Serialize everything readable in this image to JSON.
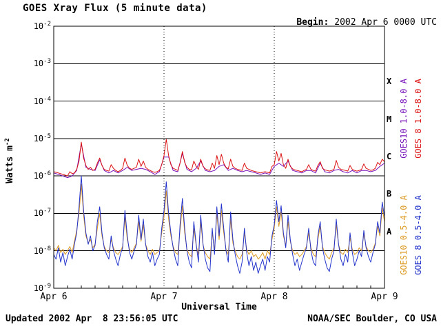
{
  "chart_data": {
    "type": "line",
    "title": "GOES Xray Flux (5 minute data)",
    "annotations": {
      "begin_label": "Begin:",
      "begin_value": "2002 Apr 6 0000 UTC",
      "updated": "Updated 2002 Apr  8 23:56:05 UTC",
      "credit": "NOAA/SEC Boulder, CO USA"
    },
    "xlabel": "Universal Time",
    "ylabel": "Watts m^-2",
    "y_scale": "log10",
    "y_range": [
      1e-09,
      0.01
    ],
    "y_ticks": [
      "10^-2",
      "10^-3",
      "10^-4",
      "10^-5",
      "10^-6",
      "10^-7",
      "10^-8",
      "10^-9"
    ],
    "x_range_hours": [
      0,
      72
    ],
    "x_ticks": [
      "Apr 6",
      "Apr 7",
      "Apr 8",
      "Apr 9"
    ],
    "flare_classes": [
      "X",
      "M",
      "C",
      "B",
      "A"
    ],
    "grid": {
      "horizontal": "solid black line at each decade",
      "vertical": "dotted black line at each day boundary"
    },
    "legend_position": "right edge, rotated labels colored per series",
    "series": [
      {
        "name": "GOES10 1.0-8.0 A",
        "color": "#7711bb",
        "dt_hours": 1.0,
        "values": [
          1.2e-06,
          1.1e-06,
          1e-06,
          9e-07,
          1e-06,
          1.4e-06,
          7.2e-06,
          1.7e-06,
          1.5e-06,
          1.4e-06,
          2.7e-06,
          1.4e-06,
          1.2e-06,
          1.4e-06,
          1.2e-06,
          1.4e-06,
          1.7e-06,
          1.4e-06,
          1.5e-06,
          1.6e-06,
          1.5e-06,
          1.3e-06,
          1.1e-06,
          1.3e-06,
          3.2e-06,
          3.2e-06,
          1.4e-06,
          1.3e-06,
          4e-06,
          1.5e-06,
          1.3e-06,
          1.6e-06,
          2.5e-06,
          1.4e-06,
          1.3e-06,
          1.4e-06,
          1.8e-06,
          2e-06,
          1.4e-06,
          1.6e-06,
          1.4e-06,
          1.3e-06,
          1.4e-06,
          1.3e-06,
          1.2e-06,
          1.1e-06,
          1.2e-06,
          1.1e-06,
          1.8e-06,
          2.2e-06,
          1.8e-06,
          2.5e-06,
          1.4e-06,
          1.3e-06,
          1.2e-06,
          1.4e-06,
          1.4e-06,
          1.2e-06,
          2.2e-06,
          1.3e-06,
          1.2e-06,
          1.4e-06,
          1.5e-06,
          1.3e-06,
          1.2e-06,
          1.4e-06,
          1.2e-06,
          1.4e-06,
          1.4e-06,
          1.3e-06,
          1.4e-06,
          1.8e-06,
          2.2e-06
        ]
      },
      {
        "name": "GOES 8 1.0-8.0 A",
        "color": "#dd1111",
        "dt_hours": 0.5,
        "values": [
          1.3e-06,
          1.25e-06,
          1.2e-06,
          1.15e-06,
          1.1e-06,
          1.05e-06,
          1e-06,
          1.3e-06,
          1.15e-06,
          1.2e-06,
          1.5e-06,
          2.5e-06,
          8e-06,
          3e-06,
          1.9e-06,
          1.5e-06,
          1.7e-06,
          1.4e-06,
          1.5e-06,
          2.2e-06,
          3e-06,
          1.9e-06,
          1.5e-06,
          1.4e-06,
          1.35e-06,
          2e-06,
          1.6e-06,
          1.4e-06,
          1.3e-06,
          1.4e-06,
          1.6e-06,
          3e-06,
          1.9e-06,
          1.6e-06,
          1.5e-06,
          1.6e-06,
          1.7e-06,
          2.8e-06,
          1.8e-06,
          2.5e-06,
          1.7e-06,
          1.5e-06,
          1.4e-06,
          1.3e-06,
          1.25e-06,
          1.3e-06,
          1.4e-06,
          2e-06,
          3.5e-06,
          9.5e-06,
          3.5e-06,
          2e-06,
          1.6e-06,
          1.5e-06,
          1.4e-06,
          2.2e-06,
          4.5e-06,
          2.3e-06,
          1.7e-06,
          1.5e-06,
          1.45e-06,
          2.5e-06,
          1.8e-06,
          1.5e-06,
          2.8e-06,
          1.8e-06,
          1.55e-06,
          1.45e-06,
          1.4e-06,
          2.2e-06,
          1.6e-06,
          3.5e-06,
          2e-06,
          3.8e-06,
          2.2e-06,
          1.7e-06,
          1.55e-06,
          2.8e-06,
          1.8e-06,
          1.6e-06,
          1.5e-06,
          1.45e-06,
          1.4e-06,
          2.2e-06,
          1.6e-06,
          1.5e-06,
          1.4e-06,
          1.35e-06,
          1.3e-06,
          1.25e-06,
          1.2e-06,
          1.25e-06,
          1.3e-06,
          1.25e-06,
          1.2e-06,
          1.8e-06,
          2e-06,
          4.5e-06,
          2.5e-06,
          4e-06,
          2e-06,
          1.6e-06,
          2.8e-06,
          1.8e-06,
          1.55e-06,
          1.45e-06,
          1.4e-06,
          1.35e-06,
          1.3e-06,
          1.4e-06,
          1.5e-06,
          2e-06,
          1.5e-06,
          1.4e-06,
          1.35e-06,
          1.9e-06,
          2.4e-06,
          1.6e-06,
          1.45e-06,
          1.4e-06,
          1.35e-06,
          1.4e-06,
          1.5e-06,
          2.6e-06,
          1.7e-06,
          1.5e-06,
          1.45e-06,
          1.4e-06,
          1.35e-06,
          1.9e-06,
          1.5e-06,
          1.4e-06,
          1.35e-06,
          1.4e-06,
          1.5e-06,
          2.1e-06,
          1.6e-06,
          1.5e-06,
          1.4e-06,
          1.45e-06,
          1.6e-06,
          2.3e-06,
          2e-06,
          2.8e-06,
          2.4e-06
        ]
      },
      {
        "name": "GOES10 0.5-4.0 A",
        "color": "#dd9922",
        "dt_hours": 0.5,
        "values": [
          1.2e-08,
          1e-08,
          1.4e-08,
          9e-09,
          1.1e-08,
          8e-09,
          1e-08,
          1.3e-08,
          9e-09,
          1.8e-08,
          3.5e-08,
          1e-07,
          6e-07,
          9e-08,
          2.5e-08,
          1.6e-08,
          2e-08,
          1.2e-08,
          1.5e-08,
          4e-08,
          1e-07,
          2.5e-08,
          1.3e-08,
          1e-08,
          9e-09,
          2e-08,
          1.2e-08,
          9e-09,
          8e-09,
          1e-08,
          1.3e-08,
          8e-08,
          2e-08,
          1.1e-08,
          9e-09,
          1.2e-08,
          1.6e-08,
          6e-08,
          1.8e-08,
          5e-08,
          1.5e-08,
          1e-08,
          8e-09,
          1.1e-08,
          8e-09,
          9e-09,
          1e-08,
          3e-08,
          8e-08,
          4e-07,
          7e-08,
          2.5e-08,
          1.3e-08,
          9e-09,
          8e-09,
          3.5e-08,
          1.6e-07,
          3e-08,
          1.1e-08,
          8e-09,
          7e-09,
          4e-08,
          1.4e-08,
          8e-09,
          6e-08,
          1.4e-08,
          9e-09,
          7e-09,
          6e-09,
          3e-08,
          1e-08,
          1e-07,
          2e-08,
          1.2e-07,
          3e-08,
          1.1e-08,
          8e-09,
          7e-08,
          1.6e-08,
          1e-08,
          7e-09,
          6e-09,
          8e-09,
          3e-08,
          1.1e-08,
          8e-09,
          1e-08,
          7e-09,
          8e-09,
          6e-09,
          7e-09,
          9e-09,
          6e-09,
          1e-08,
          8e-09,
          2e-08,
          4e-08,
          1.5e-07,
          4.5e-08,
          1.1e-07,
          2.5e-08,
          1.4e-08,
          6e-08,
          1.8e-08,
          1e-08,
          8e-09,
          9e-09,
          7e-09,
          8e-09,
          1e-08,
          1.3e-08,
          3e-08,
          1.2e-08,
          8e-09,
          7e-09,
          2e-08,
          4.5e-08,
          1.3e-08,
          9e-09,
          7e-09,
          6e-09,
          9e-09,
          1.2e-08,
          5e-08,
          1.5e-08,
          9e-09,
          8e-09,
          1.1e-08,
          9e-09,
          2.2e-08,
          1.1e-08,
          8e-09,
          9e-09,
          1.2e-08,
          1e-08,
          2.8e-08,
          1.3e-08,
          1e-08,
          9e-09,
          1.1e-08,
          1.6e-08,
          4.5e-08,
          2.5e-08,
          1.4e-07,
          6e-08
        ]
      },
      {
        "name": "GOES 8 0.5-4.0 A",
        "color": "#2233cc",
        "dt_hours": 0.5,
        "values": [
          8e-09,
          6e-09,
          1.2e-08,
          5e-09,
          9e-09,
          4e-09,
          7e-09,
          1.1e-08,
          6e-09,
          1.5e-08,
          3e-08,
          1.5e-07,
          1e-06,
          1.2e-07,
          3e-08,
          1.5e-08,
          2.5e-08,
          1e-08,
          1.4e-08,
          6e-08,
          1.5e-07,
          3e-08,
          1.2e-08,
          8e-09,
          6e-09,
          2.5e-08,
          1e-08,
          6e-09,
          4e-09,
          8e-09,
          1.2e-08,
          1.2e-07,
          2.5e-08,
          9e-09,
          6e-09,
          1e-08,
          1.5e-08,
          9e-08,
          2e-08,
          7e-08,
          1.5e-08,
          7e-09,
          5e-09,
          9e-09,
          4e-09,
          6e-09,
          8e-09,
          4e-08,
          1.2e-07,
          7e-07,
          1e-07,
          3e-08,
          1.2e-08,
          6e-09,
          4e-09,
          5e-08,
          2.5e-07,
          4e-08,
          1e-08,
          5e-09,
          3.5e-09,
          6e-08,
          1.5e-08,
          5e-09,
          9e-08,
          1.5e-08,
          6e-09,
          3.5e-09,
          2.8e-09,
          4e-08,
          8e-09,
          1.5e-07,
          2.5e-08,
          1.8e-07,
          4e-08,
          1e-08,
          5e-09,
          1.1e-07,
          2e-08,
          8e-09,
          4e-09,
          2.5e-09,
          5e-09,
          4e-08,
          9e-09,
          4e-09,
          7e-09,
          3e-09,
          5e-09,
          2.5e-09,
          4e-09,
          6e-09,
          3e-09,
          7e-09,
          5e-09,
          2.5e-08,
          5e-08,
          2.2e-07,
          6e-08,
          1.6e-07,
          3e-08,
          1.2e-08,
          9e-08,
          2e-08,
          8e-09,
          4e-09,
          6e-09,
          3e-09,
          5e-09,
          8e-09,
          1.2e-08,
          4e-08,
          1e-08,
          5e-09,
          4e-09,
          2.5e-08,
          6e-08,
          1.2e-08,
          6e-09,
          3.5e-09,
          2.8e-09,
          6e-09,
          1e-08,
          7e-08,
          1.5e-08,
          6e-09,
          4e-09,
          8e-09,
          5e-09,
          3e-08,
          9e-09,
          4e-09,
          6e-09,
          1e-08,
          7e-09,
          3.5e-08,
          1.2e-08,
          7e-09,
          5e-09,
          9e-09,
          1.5e-08,
          6e-08,
          3e-08,
          2e-07,
          8e-08
        ]
      }
    ]
  }
}
